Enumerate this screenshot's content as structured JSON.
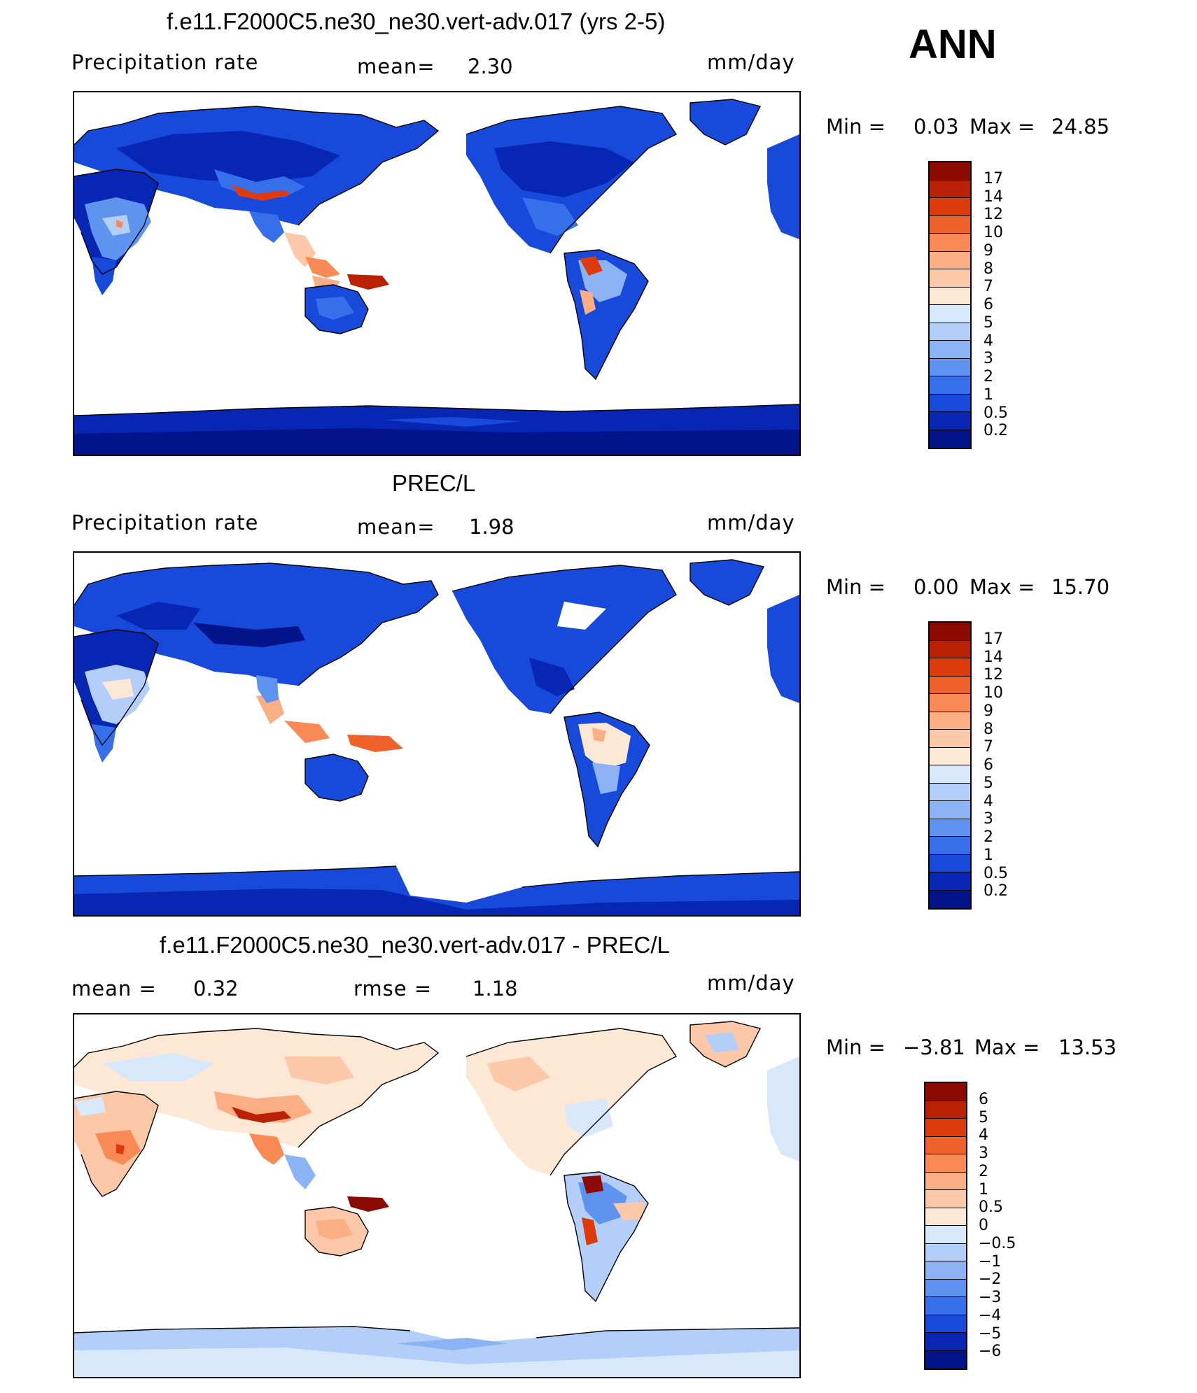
{
  "season": "ANN",
  "panels": [
    {
      "title": "f.e11.F2000C5.ne30_ne30.vert-adv.017 (yrs 2-5)",
      "left_label": "Precipitation rate",
      "mean_label": "mean=",
      "mean_value": "2.30",
      "units": "mm/day",
      "min_label": "Min =",
      "min_value": "0.03",
      "max_label": "Max =",
      "max_value": "24.85",
      "colorbar_labels": [
        "17",
        "14",
        "12",
        "10",
        "9",
        "8",
        "7",
        "6",
        "5",
        "4",
        "3",
        "2",
        "1",
        "0.5",
        "0.2"
      ],
      "colorbar_colors": [
        "#8b0a02",
        "#b82104",
        "#dd3b0b",
        "#f0622b",
        "#f98a55",
        "#fbad84",
        "#fcc8a8",
        "#fde8d6",
        "#d7e8fb",
        "#b3cff9",
        "#8bb3f6",
        "#5f93f0",
        "#3570ea",
        "#1749da",
        "#0626b3",
        "#031389"
      ]
    },
    {
      "title": "PREC/L",
      "left_label": "Precipitation rate",
      "mean_label": "mean=",
      "mean_value": "1.98",
      "units": "mm/day",
      "min_label": "Min =",
      "min_value": "0.00",
      "max_label": "Max =",
      "max_value": "15.70",
      "colorbar_labels": [
        "17",
        "14",
        "12",
        "10",
        "9",
        "8",
        "7",
        "6",
        "5",
        "4",
        "3",
        "2",
        "1",
        "0.5",
        "0.2"
      ],
      "colorbar_colors": [
        "#8b0a02",
        "#b82104",
        "#dd3b0b",
        "#f0622b",
        "#f98a55",
        "#fbad84",
        "#fcc8a8",
        "#fde8d6",
        "#d7e8fb",
        "#b3cff9",
        "#8bb3f6",
        "#5f93f0",
        "#3570ea",
        "#1749da",
        "#0626b3",
        "#031389"
      ]
    },
    {
      "title": "f.e11.F2000C5.ne30_ne30.vert-adv.017 - PREC/L",
      "left_label": "mean =",
      "left_value": "0.32",
      "mean_label": "rmse =",
      "mean_value": "1.18",
      "units": "mm/day",
      "min_label": "Min =",
      "min_value": "−3.81",
      "max_label": "Max =",
      "max_value": "13.53",
      "colorbar_labels": [
        "6",
        "5",
        "4",
        "3",
        "2",
        "1",
        "0.5",
        "0",
        "−0.5",
        "−1",
        "−2",
        "−3",
        "−4",
        "−5",
        "−6"
      ],
      "colorbar_colors": [
        "#8b0a02",
        "#b82104",
        "#dd3b0b",
        "#f0622b",
        "#f98a55",
        "#fbad84",
        "#fcc8a8",
        "#fde8d6",
        "#d7e8fb",
        "#b3cff9",
        "#8bb3f6",
        "#5f93f0",
        "#3570ea",
        "#1749da",
        "#0626b3",
        "#031389"
      ]
    }
  ]
}
